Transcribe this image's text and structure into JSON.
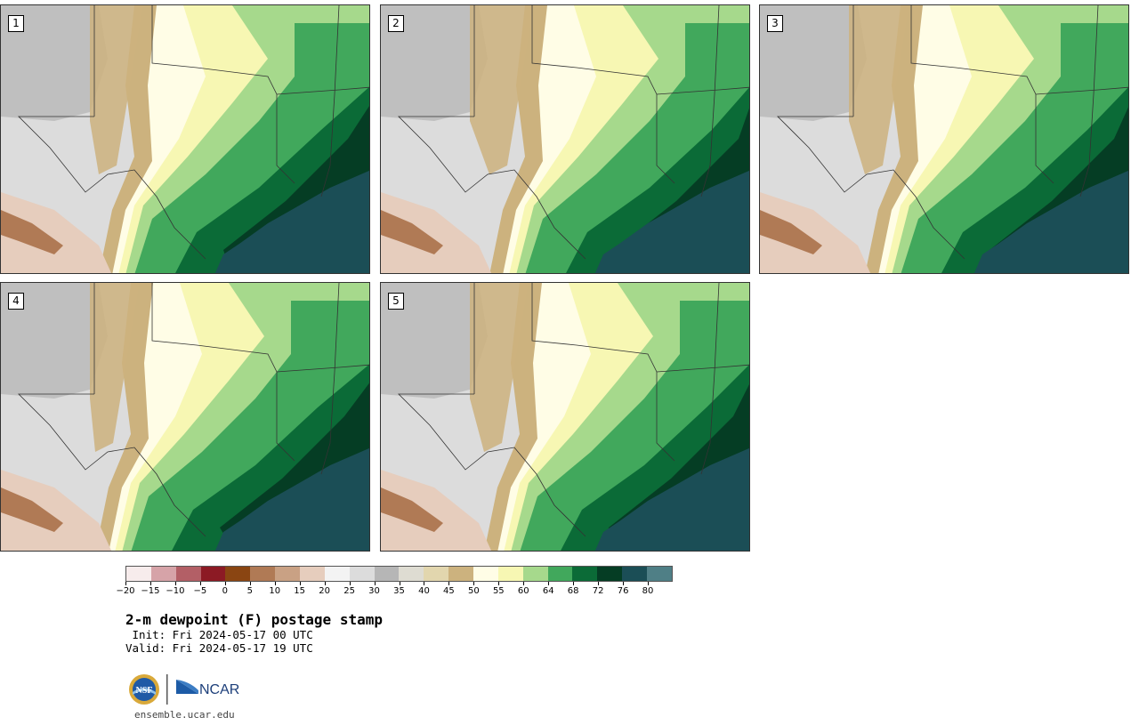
{
  "panels": [
    {
      "label": "1"
    },
    {
      "label": "2"
    },
    {
      "label": "3"
    },
    {
      "label": "4"
    },
    {
      "label": "5"
    }
  ],
  "colorbar": {
    "colors": [
      "#f7ecec",
      "#d6a3a8",
      "#b35f66",
      "#8c1a24",
      "#8a4512",
      "#b07a55",
      "#c9a184",
      "#e6cdbd",
      "#f3f3f3",
      "#dcdcdc",
      "#b6b6b6",
      "#dedcd2",
      "#e2d6ae",
      "#ccb27e",
      "#fffde6",
      "#f7f7b3",
      "#a6d98c",
      "#41a85c",
      "#0b6b37",
      "#053d24",
      "#1b4e56",
      "#4f7f86"
    ],
    "ticks": [
      "−20",
      "−15",
      "−10",
      "−5",
      "0",
      "5",
      "10",
      "15",
      "20",
      "25",
      "30",
      "35",
      "40",
      "45",
      "50",
      "55",
      "60",
      "64",
      "68",
      "72",
      "76",
      "80"
    ]
  },
  "title": "2-m dewpoint (F) postage stamp",
  "init_text": " Init: Fri 2024-05-17 00 UTC",
  "valid_text": "Valid: Fri 2024-05-17 19 UTC",
  "logos": {
    "nsf": "NSF",
    "ncar": "NCAR"
  },
  "site": "ensemble.ucar.edu",
  "fill_colors": {
    "ocean": "#1b4e56",
    "deep": "#0b6b37",
    "darkest": "#053d24",
    "mid": "#41a85c",
    "light": "#a6d98c",
    "pale": "#f7f7b3",
    "cream": "#fffde6",
    "tan": "#ccb27e",
    "beige": "#e2d6ae",
    "gray": "#b6b6b6",
    "lightgray": "#dcdcdc",
    "brown": "#b07a55",
    "rose": "#e6cdbd"
  }
}
